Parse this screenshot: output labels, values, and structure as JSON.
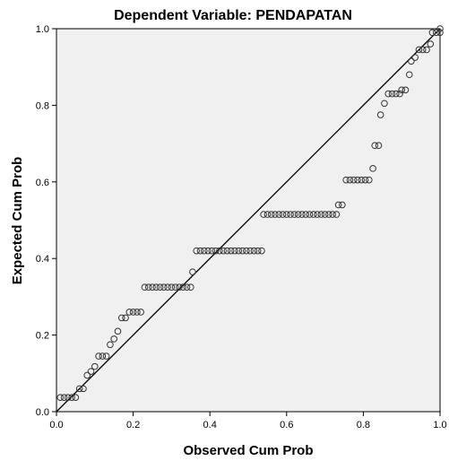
{
  "chart_data": {
    "type": "scatter",
    "title": "Dependent Variable: PENDAPATAN",
    "xlabel": "Observed Cum Prob",
    "ylabel": "Expected Cum Prob",
    "xlim": [
      0,
      1
    ],
    "ylim": [
      0,
      1
    ],
    "xticks": [
      "0.0",
      "0.2",
      "0.4",
      "0.6",
      "0.8",
      "1.0"
    ],
    "yticks": [
      "0.0",
      "0.2",
      "0.4",
      "0.6",
      "0.8",
      "1.0"
    ],
    "grid": false,
    "reference_line": {
      "from": [
        0,
        0
      ],
      "to": [
        1,
        1
      ]
    },
    "colors": {
      "plot_background": "#f0f0f0",
      "marker_stroke": "#333333",
      "line": "#000000"
    },
    "points": [
      [
        0.01,
        0.037
      ],
      [
        0.02,
        0.037
      ],
      [
        0.03,
        0.037
      ],
      [
        0.04,
        0.037
      ],
      [
        0.05,
        0.037
      ],
      [
        0.06,
        0.06
      ],
      [
        0.07,
        0.06
      ],
      [
        0.08,
        0.095
      ],
      [
        0.09,
        0.105
      ],
      [
        0.1,
        0.118
      ],
      [
        0.11,
        0.145
      ],
      [
        0.12,
        0.145
      ],
      [
        0.13,
        0.145
      ],
      [
        0.14,
        0.175
      ],
      [
        0.15,
        0.19
      ],
      [
        0.16,
        0.21
      ],
      [
        0.17,
        0.245
      ],
      [
        0.18,
        0.245
      ],
      [
        0.19,
        0.26
      ],
      [
        0.2,
        0.26
      ],
      [
        0.21,
        0.26
      ],
      [
        0.22,
        0.26
      ],
      [
        0.23,
        0.325
      ],
      [
        0.24,
        0.325
      ],
      [
        0.25,
        0.325
      ],
      [
        0.26,
        0.325
      ],
      [
        0.27,
        0.325
      ],
      [
        0.28,
        0.325
      ],
      [
        0.29,
        0.325
      ],
      [
        0.3,
        0.325
      ],
      [
        0.31,
        0.325
      ],
      [
        0.32,
        0.325
      ],
      [
        0.33,
        0.325
      ],
      [
        0.34,
        0.325
      ],
      [
        0.35,
        0.325
      ],
      [
        0.355,
        0.365
      ],
      [
        0.365,
        0.42
      ],
      [
        0.375,
        0.42
      ],
      [
        0.385,
        0.42
      ],
      [
        0.395,
        0.42
      ],
      [
        0.405,
        0.42
      ],
      [
        0.415,
        0.42
      ],
      [
        0.425,
        0.42
      ],
      [
        0.435,
        0.42
      ],
      [
        0.445,
        0.42
      ],
      [
        0.455,
        0.42
      ],
      [
        0.465,
        0.42
      ],
      [
        0.475,
        0.42
      ],
      [
        0.485,
        0.42
      ],
      [
        0.495,
        0.42
      ],
      [
        0.505,
        0.42
      ],
      [
        0.515,
        0.42
      ],
      [
        0.525,
        0.42
      ],
      [
        0.535,
        0.42
      ],
      [
        0.54,
        0.515
      ],
      [
        0.55,
        0.515
      ],
      [
        0.56,
        0.515
      ],
      [
        0.57,
        0.515
      ],
      [
        0.58,
        0.515
      ],
      [
        0.59,
        0.515
      ],
      [
        0.6,
        0.515
      ],
      [
        0.61,
        0.515
      ],
      [
        0.62,
        0.515
      ],
      [
        0.63,
        0.515
      ],
      [
        0.64,
        0.515
      ],
      [
        0.65,
        0.515
      ],
      [
        0.66,
        0.515
      ],
      [
        0.67,
        0.515
      ],
      [
        0.68,
        0.515
      ],
      [
        0.69,
        0.515
      ],
      [
        0.7,
        0.515
      ],
      [
        0.71,
        0.515
      ],
      [
        0.72,
        0.515
      ],
      [
        0.73,
        0.515
      ],
      [
        0.735,
        0.54
      ],
      [
        0.745,
        0.54
      ],
      [
        0.755,
        0.605
      ],
      [
        0.765,
        0.605
      ],
      [
        0.775,
        0.605
      ],
      [
        0.785,
        0.605
      ],
      [
        0.795,
        0.605
      ],
      [
        0.805,
        0.605
      ],
      [
        0.815,
        0.605
      ],
      [
        0.825,
        0.635
      ],
      [
        0.83,
        0.695
      ],
      [
        0.84,
        0.695
      ],
      [
        0.845,
        0.775
      ],
      [
        0.855,
        0.805
      ],
      [
        0.865,
        0.83
      ],
      [
        0.875,
        0.83
      ],
      [
        0.885,
        0.83
      ],
      [
        0.895,
        0.83
      ],
      [
        0.9,
        0.84
      ],
      [
        0.91,
        0.84
      ],
      [
        0.92,
        0.88
      ],
      [
        0.925,
        0.915
      ],
      [
        0.935,
        0.925
      ],
      [
        0.945,
        0.945
      ],
      [
        0.955,
        0.945
      ],
      [
        0.965,
        0.945
      ],
      [
        0.975,
        0.96
      ],
      [
        0.98,
        0.99
      ],
      [
        0.99,
        0.99
      ],
      [
        1.0,
        0.99
      ],
      [
        1.0,
        1.0
      ]
    ]
  }
}
